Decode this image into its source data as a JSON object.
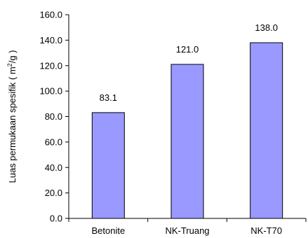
{
  "chart_data": {
    "type": "bar",
    "categories": [
      "Betonite",
      "NK-Truang",
      "NK-T70"
    ],
    "values": [
      83.1,
      121.0,
      138.0
    ],
    "data_labels": [
      "83.1",
      "121.0",
      "138.0"
    ],
    "ylabel": {
      "main": "Luas permukaan spesifik ( m",
      "sup": "2",
      "tail": "/g )"
    },
    "ylim": [
      0,
      160
    ],
    "yticks": [
      0,
      20,
      40,
      60,
      80,
      100,
      120,
      140,
      160
    ],
    "ytick_labels": [
      "0.0",
      "20.0",
      "40.0",
      "60.0",
      "80.0",
      "100.0",
      "120.0",
      "140.0",
      "160.0"
    ],
    "grid": false,
    "legend": "none",
    "colors": {
      "bar_fill": "#9999ff",
      "bar_stroke": "#000000",
      "axis": "#000000"
    }
  }
}
